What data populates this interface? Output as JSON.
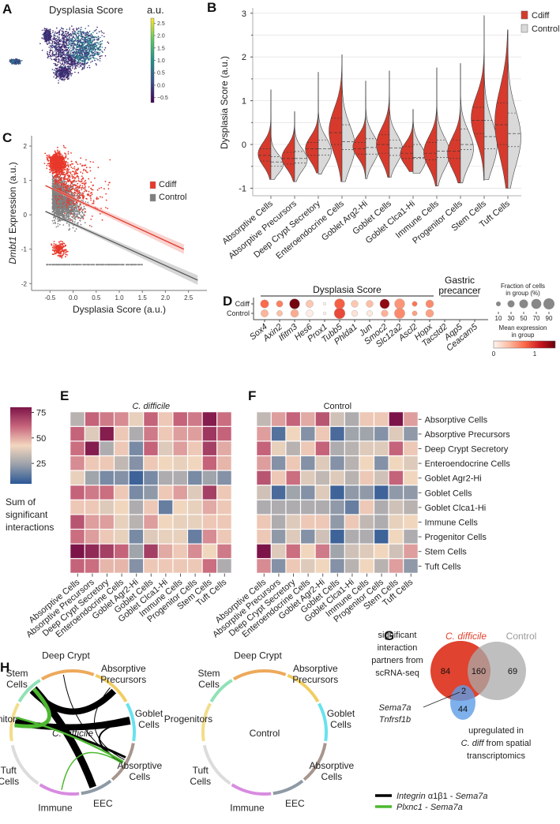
{
  "panels": {
    "A": {
      "letter": "A",
      "title": "Dysplasia Score",
      "colorbar_label": "a.u.",
      "colorbar_ticks": [
        "2.5",
        "2.0",
        "1.5",
        "1.0",
        "0.5",
        "0.0",
        "−0.5"
      ],
      "colormap": [
        "#440154",
        "#3b528b",
        "#21918c",
        "#5ec962",
        "#fde725"
      ],
      "colorbar_range": [
        -0.7,
        2.7
      ]
    },
    "B": {
      "letter": "B"
    },
    "C": {
      "letter": "C"
    },
    "D": {
      "letter": "D"
    },
    "E": {
      "letter": "E"
    },
    "F": {
      "letter": "F"
    },
    "G": {
      "letter": "G"
    },
    "H": {
      "letter": "H"
    }
  },
  "chart_data": [
    {
      "id": "B",
      "type": "violin",
      "title": "",
      "ylabel": "Dysplasia Score (a.u.)",
      "xlabel": "",
      "ylim": [
        -1.1,
        3.05
      ],
      "yticks": [
        "-1",
        "0",
        "1",
        "2",
        "3"
      ],
      "grid": true,
      "legend_position": "top-right",
      "legend": [
        {
          "name": "Cdiff",
          "color": "#d73a2c"
        },
        {
          "name": "Control",
          "color": "#d9d9d9"
        }
      ],
      "categories": [
        "Absorptive Cells",
        "Absorptive Precursors",
        "Deep Crypt Secretory",
        "Enteroendocrine Cells",
        "Goblet Arg2-Hi",
        "Goblet Cells",
        "Goblet Clca1-Hi",
        "Immune Cells",
        "Progenitor Cells",
        "Stem Cells",
        "Tuft Cells"
      ],
      "series": [
        {
          "name": "Cdiff",
          "min": [
            -0.8,
            -0.85,
            -0.65,
            -0.85,
            -0.78,
            -0.75,
            -0.62,
            -0.95,
            -0.88,
            -0.82,
            -1.0
          ],
          "max": [
            1.25,
            0.75,
            1.65,
            2.05,
            1.45,
            1.68,
            0.8,
            1.75,
            1.85,
            2.95,
            2.62
          ],
          "q1": [
            -0.38,
            -0.45,
            -0.25,
            -0.0,
            -0.22,
            -0.2,
            -0.32,
            -0.35,
            -0.32,
            0.25,
            0.0
          ],
          "median": [
            -0.25,
            -0.32,
            -0.1,
            0.27,
            -0.1,
            -0.0,
            -0.2,
            -0.2,
            -0.15,
            0.55,
            0.45
          ],
          "q3": [
            -0.1,
            -0.18,
            0.05,
            0.6,
            0.05,
            0.22,
            -0.05,
            0.05,
            0.1,
            0.85,
            0.95
          ],
          "mode": [
            -0.22,
            -0.3,
            -0.1,
            0.3,
            -0.05,
            0.0,
            -0.22,
            -0.18,
            -0.2,
            0.6,
            0.5
          ]
        },
        {
          "name": "Control",
          "min": [
            -0.8,
            -0.85,
            -0.68,
            -0.85,
            -0.78,
            -0.75,
            -0.66,
            -0.95,
            -0.88,
            -0.8,
            -1.0
          ],
          "max": [
            1.25,
            0.75,
            1.65,
            2.05,
            1.45,
            1.68,
            0.8,
            1.75,
            1.85,
            2.95,
            2.62
          ],
          "q1": [
            -0.5,
            -0.42,
            -0.24,
            -0.12,
            -0.22,
            -0.25,
            -0.32,
            -0.3,
            -0.12,
            -0.1,
            -0.05
          ],
          "median": [
            -0.4,
            -0.32,
            -0.1,
            0.06,
            -0.07,
            -0.08,
            -0.3,
            -0.15,
            -0.0,
            0.18,
            0.25
          ],
          "q3": [
            -0.28,
            -0.16,
            0.1,
            0.45,
            0.13,
            0.1,
            -0.0,
            0.1,
            0.35,
            0.55,
            0.72
          ],
          "mode": [
            -0.45,
            -0.35,
            -0.15,
            -0.05,
            -0.1,
            -0.1,
            -0.32,
            -0.2,
            -0.1,
            0.0,
            0.15
          ]
        }
      ]
    },
    {
      "id": "C",
      "type": "scatter",
      "xlabel": "Dysplasia Score (a.u.)",
      "ylabel_italic": "Dmbt1",
      "ylabel_rest": " Expression (a.u.)",
      "xlim": [
        -0.9,
        2.9
      ],
      "ylim": [
        -2.2,
        2.3
      ],
      "xticks": [
        "-0.5",
        "0.0",
        "0.5",
        "1.0",
        "1.5",
        "2.0",
        "2.5"
      ],
      "yticks": [
        "-2",
        "-1",
        "0",
        "1",
        "2"
      ],
      "legend_position": "top-right",
      "legend": [
        {
          "name": "Cdiff",
          "color": "#e8382b"
        },
        {
          "name": "Control",
          "color": "#7f7f7f"
        }
      ],
      "series": [
        {
          "name": "Cdiff",
          "color": "#e8382b",
          "regression": {
            "x": [
              -0.6,
              2.4
            ],
            "y": [
              0.85,
              -1.0
            ]
          },
          "floor_value": -1.45,
          "cloud_center": [
            -0.2,
            0.9
          ],
          "n_points": 1400
        },
        {
          "name": "Control",
          "color": "#808080",
          "regression": {
            "x": [
              -0.6,
              2.7
            ],
            "y": [
              0.1,
              -1.9
            ]
          },
          "floor_value": -1.45,
          "cloud_center": [
            -0.2,
            0.1
          ],
          "n_points": 2200
        }
      ]
    },
    {
      "id": "D",
      "type": "dotplot",
      "group_labels": [
        {
          "label": "Dysplasia Score",
          "span": [
            0,
            11
          ]
        },
        {
          "label_line1": "Gastric",
          "label_line2": "precancer",
          "span": [
            12,
            14
          ]
        }
      ],
      "rows": [
        "Cdiff",
        "Control"
      ],
      "genes": [
        "Sox4",
        "Axin2",
        "Ifitm3",
        "Hes6",
        "Prox1",
        "Tubb5",
        "Phlda1",
        "Jun",
        "Smoc2",
        "Slc12a2",
        "Ascl2",
        "Hopx",
        "Tacstd2",
        "Aqp5",
        "Ceacam5"
      ],
      "fraction_pct": [
        [
          45,
          25,
          75,
          35,
          2,
          75,
          30,
          30,
          65,
          75,
          12,
          40,
          0,
          0,
          0
        ],
        [
          35,
          18,
          40,
          30,
          2,
          88,
          22,
          18,
          28,
          80,
          12,
          40,
          0,
          0,
          0
        ]
      ],
      "mean_expr": [
        [
          0.75,
          0.65,
          1.45,
          0.3,
          0.0,
          0.8,
          0.3,
          0.35,
          1.35,
          0.55,
          0.7,
          0.6,
          0,
          0,
          0
        ],
        [
          0.4,
          0.35,
          0.45,
          0.05,
          0.0,
          0.9,
          0.12,
          0.08,
          0.42,
          0.6,
          0.5,
          0.5,
          0,
          0,
          0
        ]
      ],
      "size_legend_title_line1": "Fraction of cells",
      "size_legend_title_line2": "in group (%)",
      "size_legend_values": [
        "10",
        "30",
        "50",
        "70",
        "90"
      ],
      "color_legend_title_line1": "Mean expression",
      "color_legend_title_line2": "in group",
      "color_legend_ticks": [
        "0",
        "1"
      ],
      "color_range": [
        0,
        1.5
      ]
    },
    {
      "id": "E",
      "type": "heatmap",
      "title": "C. difficile",
      "rows": [
        "Absorptive Cells",
        "Absorptive Precursors",
        "Deep Crypt Secretory",
        "Enteroendocrine Cells",
        "Goblet Agr2-Hi",
        "Goblet Cells",
        "Goblet Clca1-Hi",
        "Immune Cells",
        "Progenitor Cells",
        "Stem Cells",
        "Tuft Cells"
      ],
      "columns": [
        "Absorptive Cells",
        "Absorptive Precursors",
        "Deep Crypt Secretory",
        "Enteroendocrine Cells",
        "Goblet Agr2-Hi",
        "Goblet Cells",
        "Goblet Clca1-Hi",
        "Immune Cells",
        "Progenitor Cells",
        "Stem Cells",
        "Tuft Cells"
      ],
      "values": [
        [
          30,
          62,
          58,
          55,
          40,
          62,
          45,
          62,
          58,
          78,
          60
        ],
        [
          62,
          38,
          78,
          45,
          28,
          58,
          45,
          52,
          52,
          72,
          62
        ],
        [
          60,
          78,
          28,
          45,
          18,
          62,
          38,
          52,
          45,
          70,
          50
        ],
        [
          55,
          45,
          45,
          32,
          20,
          45,
          42,
          40,
          42,
          62,
          48
        ],
        [
          40,
          25,
          18,
          20,
          8,
          18,
          28,
          28,
          18,
          25,
          20
        ],
        [
          62,
          58,
          60,
          45,
          18,
          22,
          45,
          52,
          38,
          70,
          45
        ],
        [
          45,
          45,
          38,
          42,
          28,
          45,
          15,
          42,
          40,
          50,
          45
        ],
        [
          65,
          52,
          52,
          40,
          30,
          52,
          42,
          40,
          40,
          45,
          45
        ],
        [
          60,
          52,
          45,
          40,
          18,
          38,
          40,
          40,
          15,
          55,
          45
        ],
        [
          80,
          75,
          70,
          62,
          25,
          70,
          50,
          45,
          55,
          42,
          58
        ],
        [
          62,
          60,
          48,
          48,
          20,
          45,
          45,
          45,
          45,
          60,
          28
        ]
      ],
      "colorbar": {
        "ticks": [
          "75",
          "50",
          "25"
        ],
        "tick_values": [
          75,
          50,
          25
        ],
        "range": [
          5,
          80
        ],
        "label_lines": [
          "Sum of",
          "significant",
          "interactions"
        ],
        "colors": [
          "#2c5796",
          "#9aa0aa",
          "#f3d7bf",
          "#c7667c",
          "#7d1449"
        ]
      }
    },
    {
      "id": "F",
      "type": "heatmap",
      "title": "Control",
      "rows": [
        "Absorptive Cells",
        "Absorptive Precursors",
        "Deep Crypt Secretory",
        "Enteroendocrine Cells",
        "Goblet Agr2-Hi",
        "Goblet Cells",
        "Goblet Clca1-Hi",
        "Immune Cells",
        "Progenitor Cells",
        "Stem Cells",
        "Tuft Cells"
      ],
      "columns": [
        "Absorptive Cells",
        "Absorptive Precursors",
        "Deep Crypt Secretory",
        "Enteroendocrine Cells",
        "Goblet Agr2-Hi",
        "Goblet Cells",
        "Goblet Clca1-Hi",
        "Immune Cells",
        "Progenitor Cells",
        "Stem Cells",
        "Tuft Cells"
      ],
      "values": [
        [
          32,
          52,
          62,
          50,
          65,
          35,
          28,
          45,
          45,
          80,
          52
        ],
        [
          52,
          12,
          42,
          20,
          45,
          10,
          25,
          25,
          20,
          38,
          22
        ],
        [
          62,
          40,
          30,
          45,
          62,
          28,
          30,
          38,
          38,
          62,
          45
        ],
        [
          52,
          20,
          45,
          20,
          38,
          20,
          30,
          42,
          20,
          42,
          38
        ],
        [
          65,
          45,
          60,
          38,
          32,
          38,
          30,
          45,
          35,
          62,
          42
        ],
        [
          35,
          10,
          25,
          20,
          38,
          8,
          22,
          22,
          8,
          22,
          22
        ],
        [
          28,
          28,
          28,
          28,
          28,
          22,
          15,
          45,
          28,
          35,
          30
        ],
        [
          45,
          28,
          38,
          45,
          45,
          22,
          45,
          32,
          28,
          40,
          42
        ],
        [
          45,
          22,
          38,
          20,
          35,
          8,
          28,
          28,
          8,
          42,
          28
        ],
        [
          80,
          38,
          60,
          42,
          58,
          25,
          35,
          38,
          42,
          35,
          52
        ],
        [
          55,
          20,
          45,
          38,
          42,
          20,
          30,
          42,
          30,
          52,
          22
        ]
      ]
    },
    {
      "id": "G",
      "type": "venn",
      "set_labels": {
        "cdiff": "C. difficile",
        "control": "Control"
      },
      "set_colors": {
        "cdiff": "#e0432f",
        "control": "#a9a9a9",
        "spatial": "#5e9ee6"
      },
      "left_caption": [
        "significant",
        "interaction",
        "partners from",
        "scRNA-seq"
      ],
      "bottom_caption": [
        "upregulated in",
        "C. diff",
        "from spatial",
        "transcriptomics"
      ],
      "counts": {
        "cdiff_only": "84",
        "cdiff_control": "160",
        "control_only": "69",
        "cdiff_spatial": "2",
        "spatial_only": "44"
      },
      "genes_annotation": [
        "Sema7a",
        "Tnfrsf1b"
      ]
    },
    {
      "id": "H",
      "type": "chord",
      "conditions": [
        "C. difficile",
        "Control"
      ],
      "sectors": [
        {
          "label_lines": [
            "Deep Crypt"
          ],
          "color": "#eda95a"
        },
        {
          "label_lines": [
            "Absorptive",
            "Precursors"
          ],
          "color": "#f2cd63"
        },
        {
          "label_lines": [
            "Goblet",
            "Cells"
          ],
          "color": "#69e2ee"
        },
        {
          "label_lines": [
            "Absorptive",
            "Cells"
          ],
          "color": "#a8968e"
        },
        {
          "label_lines": [
            "EEC"
          ],
          "color": "#8e9aa5"
        },
        {
          "label_lines": [
            "Immune"
          ],
          "color": "#d88be0"
        },
        {
          "label_lines": [
            "Tuft",
            "Cells"
          ],
          "color": "#dcdcdc"
        },
        {
          "label_lines": [
            "Progenitors"
          ],
          "color": "#f2dd8a"
        },
        {
          "label_lines": [
            "Stem",
            "Cells"
          ],
          "color": "#8fe2b6"
        }
      ],
      "legend": [
        {
          "italic1": "Integrin",
          "plain": " α1β1 - ",
          "italic2": "Sema7a",
          "color": "#000000"
        },
        {
          "italic1": "Plxnc1",
          "plain": " - ",
          "italic2": "Sema7a",
          "color": "#4db830"
        }
      ],
      "links_cdiff": [
        {
          "from": 8,
          "to": 4,
          "width": 9,
          "type": 0
        },
        {
          "from": 7,
          "to": 2,
          "width": 8,
          "type": 0
        },
        {
          "from": 7,
          "to": 2,
          "width": 6,
          "type": 0
        },
        {
          "from": 8,
          "to": 1,
          "width": 8,
          "type": 0
        },
        {
          "from": 7,
          "to": 3,
          "width": 3,
          "type": 0
        },
        {
          "from": 0,
          "to": 3,
          "width": 1,
          "type": 0
        },
        {
          "from": 1,
          "to": 3,
          "width": 1,
          "type": 0
        },
        {
          "from": 2,
          "to": 3,
          "width": 2,
          "type": 0
        },
        {
          "from": 7,
          "to": 8,
          "width": 5,
          "type": 1
        },
        {
          "from": 5,
          "to": 3,
          "width": 1.5,
          "type": 1
        },
        {
          "from": 7,
          "to": 3,
          "width": 2.5,
          "type": 1
        }
      ],
      "links_control": []
    }
  ]
}
